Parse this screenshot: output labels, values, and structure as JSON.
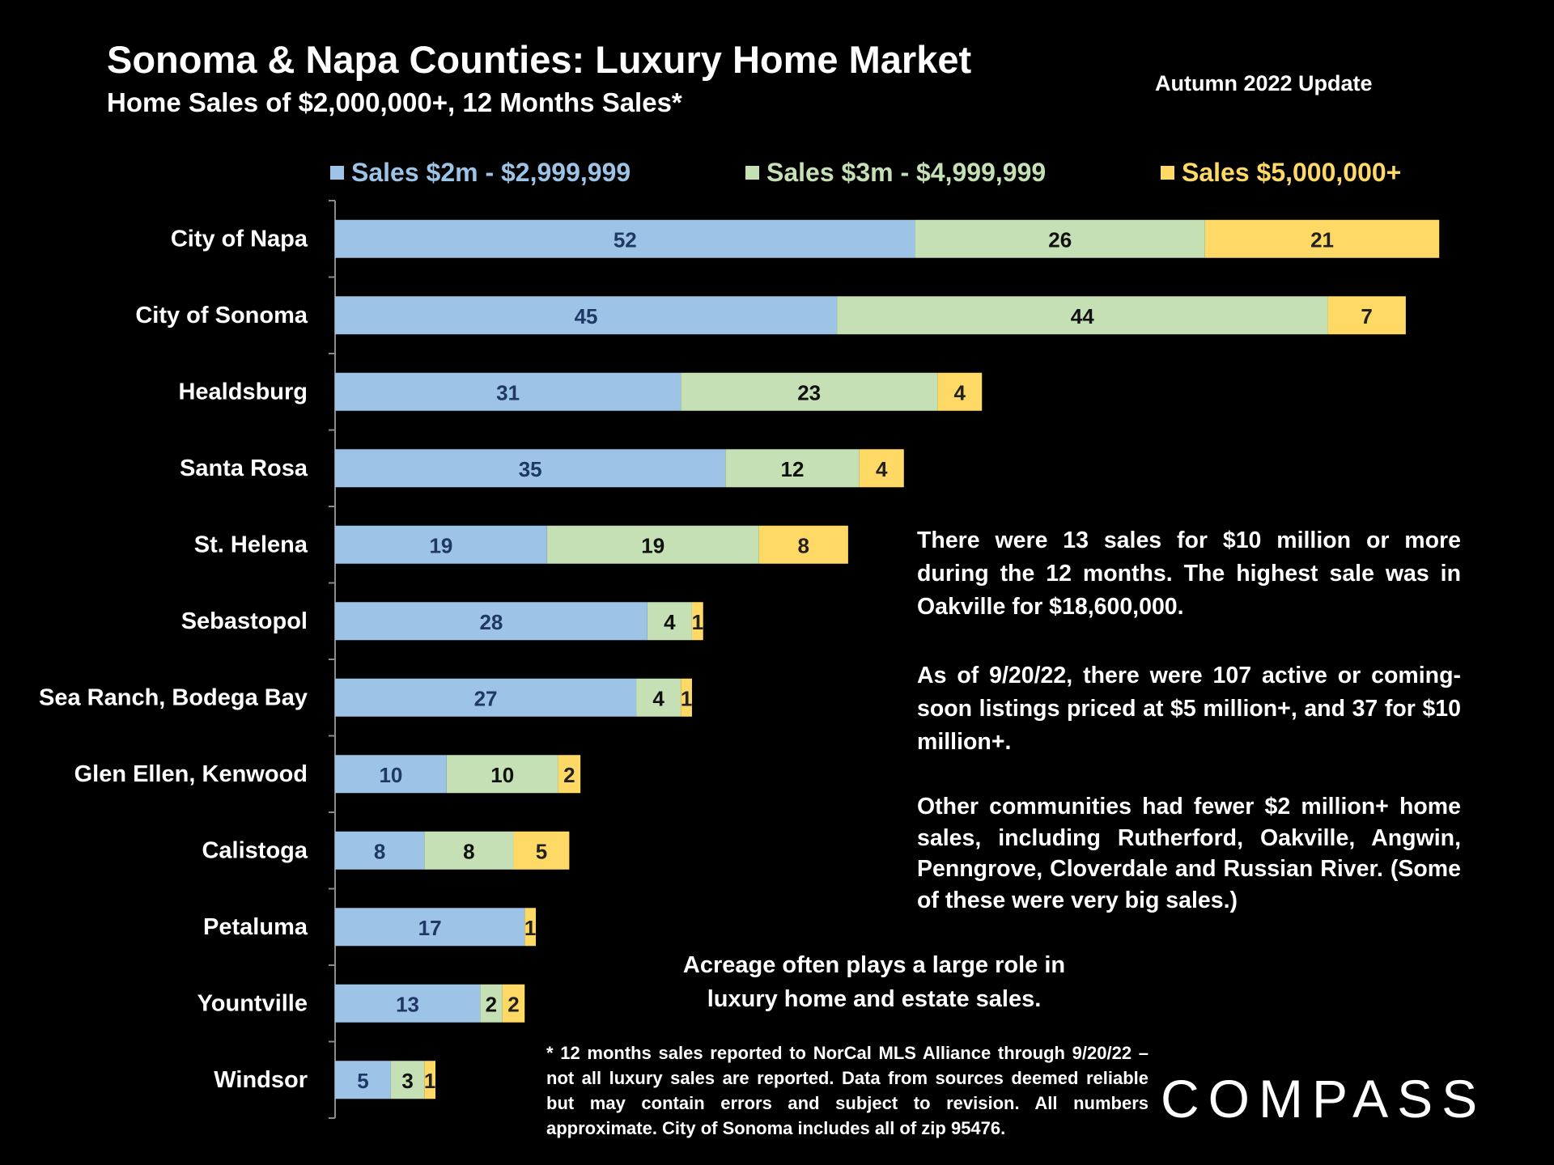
{
  "header": {
    "title": "Sonoma & Napa Counties: Luxury Home Market",
    "subtitle": "Home Sales of $2,000,000+, 12 Months Sales*",
    "update_label": "Autumn 2022 Update"
  },
  "colors": {
    "background": "#000000",
    "series_1": "#9DC3E6",
    "series_2": "#C5E0B4",
    "series_3": "#FFD966",
    "label_series_1": "#1F3864",
    "label_series_2": "#111111",
    "label_series_3": "#222222"
  },
  "chart_data": {
    "type": "bar",
    "orientation": "horizontal",
    "stacked": true,
    "title": "Sonoma & Napa Counties: Luxury Home Market",
    "subtitle": "Home Sales of $2,000,000+, 12 Months Sales*",
    "xlabel": "",
    "ylabel": "",
    "xlim": [
      0,
      100
    ],
    "grid": false,
    "legend_position": "top",
    "categories": [
      "City of Napa",
      "City of Sonoma",
      "Healdsburg",
      "Santa Rosa",
      "St. Helena",
      "Sebastopol",
      "Sea Ranch, Bodega Bay",
      "Glen Ellen, Kenwood",
      "Calistoga",
      "Petaluma",
      "Yountville",
      "Windsor"
    ],
    "series": [
      {
        "name": "Sales $2m - $2,999,999",
        "values": [
          52,
          45,
          31,
          35,
          19,
          28,
          27,
          10,
          8,
          17,
          13,
          5
        ]
      },
      {
        "name": "Sales $3m - $4,999,999",
        "values": [
          26,
          44,
          23,
          12,
          19,
          4,
          4,
          10,
          8,
          0,
          2,
          3
        ]
      },
      {
        "name": "Sales $5,000,000+",
        "values": [
          21,
          7,
          4,
          4,
          8,
          1,
          1,
          2,
          5,
          1,
          2,
          1
        ]
      }
    ]
  },
  "notes": {
    "paragraph_1": "There were 13 sales for $10 million or more during the 12 months. The highest sale was in Oakville for $18,600,000.",
    "paragraph_2": "As of 9/20/22, there were 107 active or coming-soon listings priced at $5 million+, and 37 for $10 million+.",
    "paragraph_3": "Other communities had fewer $2 million+ home sales, including Rutherford, Oakville, Angwin, Penngrove, Cloverdale and Russian River. (Some of these were very big sales.)",
    "acreage_line_1": "Acreage often plays a large role in",
    "acreage_line_2": "luxury home  and estate sales.",
    "footnote": "* 12 months sales reported to NorCal MLS Alliance through 9/20/22 – not all luxury sales are reported. Data from  sources deemed reliable but may contain errors and subject to revision. All numbers approximate.  City of Sonoma includes all of zip 95476."
  },
  "logo": {
    "text": "COMPASS"
  }
}
